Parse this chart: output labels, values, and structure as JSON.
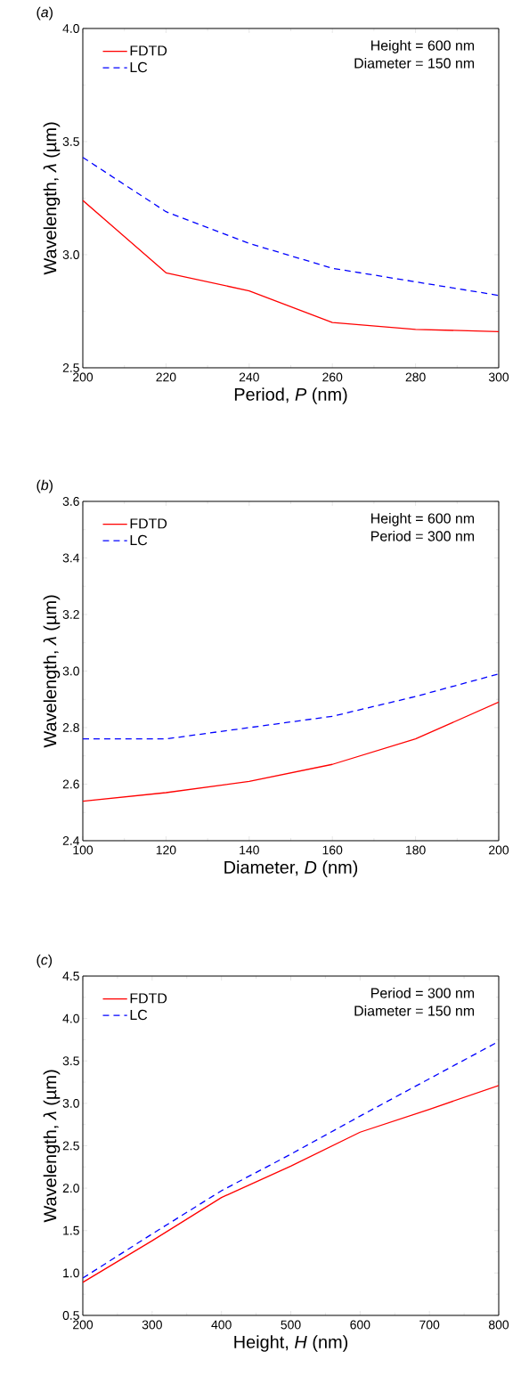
{
  "chart_data": [
    {
      "type": "line",
      "title": "(*a*)",
      "xlabel": "Period, *P* (nm)",
      "ylabel": "Wavelength, *λ* (µm)",
      "annotations": [
        "Height = 600 nm",
        "Diameter = 150 nm"
      ],
      "x": [
        200,
        220,
        240,
        260,
        280,
        300
      ],
      "series": [
        {
          "name": "FDTD",
          "color": "#ff0000",
          "line_style": "solid",
          "values": [
            3.24,
            2.92,
            2.84,
            2.7,
            2.67,
            2.66
          ]
        },
        {
          "name": "LC",
          "color": "#0000ff",
          "line_style": "dashed",
          "values": [
            3.43,
            3.19,
            3.05,
            2.94,
            2.88,
            2.82
          ]
        }
      ],
      "xlim": [
        200,
        300
      ],
      "ylim": [
        2.5,
        4.0
      ],
      "xticks": [
        200,
        220,
        240,
        260,
        280,
        300
      ],
      "yticks": [
        {
          "value": 2.5,
          "label": "2.5"
        },
        {
          "value": 3.0,
          "label": "3.0"
        },
        {
          "value": 3.5,
          "label": "3.5"
        },
        {
          "value": 4.0,
          "label": "4.0"
        }
      ],
      "legend": "top left"
    },
    {
      "type": "line",
      "title": "(*b*)",
      "xlabel": "Diameter, *D* (nm)",
      "ylabel": "Wavelength, *λ* (µm)",
      "annotations": [
        "Height = 600 nm",
        "Period = 300 nm"
      ],
      "x": [
        100,
        120,
        140,
        160,
        180,
        200
      ],
      "series": [
        {
          "name": "FDTD",
          "color": "#ff0000",
          "line_style": "solid",
          "values": [
            2.54,
            2.57,
            2.61,
            2.67,
            2.76,
            2.89
          ]
        },
        {
          "name": "LC",
          "color": "#0000ff",
          "line_style": "dashed",
          "values": [
            2.76,
            2.76,
            2.8,
            2.84,
            2.91,
            2.99
          ]
        }
      ],
      "xlim": [
        100,
        200
      ],
      "ylim": [
        2.4,
        3.6
      ],
      "xticks": [
        100,
        120,
        140,
        160,
        180,
        200
      ],
      "yticks": [
        {
          "value": 2.4,
          "label": "2.4"
        },
        {
          "value": 2.6,
          "label": "2.6"
        },
        {
          "value": 2.8,
          "label": "2.8"
        },
        {
          "value": 3.0,
          "label": "3.0"
        },
        {
          "value": 3.2,
          "label": "3.2"
        },
        {
          "value": 3.4,
          "label": "3.4"
        },
        {
          "value": 3.6,
          "label": "3.6"
        }
      ],
      "legend": "top left"
    },
    {
      "type": "line",
      "title": "(*c*)",
      "xlabel": "Height, *H* (nm)",
      "ylabel": "Wavelength, *λ* (µm)",
      "annotations": [
        "Period = 300 nm",
        "Diameter = 150 nm"
      ],
      "x": [
        200,
        300,
        400,
        500,
        600,
        700,
        800
      ],
      "series": [
        {
          "name": "FDTD",
          "color": "#ff0000",
          "line_style": "solid",
          "values": [
            0.89,
            1.38,
            1.89,
            2.26,
            2.66,
            2.93,
            3.21
          ]
        },
        {
          "name": "LC",
          "color": "#0000ff",
          "line_style": "dashed",
          "values": [
            0.94,
            1.46,
            1.97,
            2.4,
            2.85,
            3.29,
            3.73
          ]
        }
      ],
      "xlim": [
        200,
        800
      ],
      "ylim": [
        0.5,
        4.5
      ],
      "xticks": [
        200,
        300,
        400,
        500,
        600,
        700,
        800
      ],
      "yticks": [
        {
          "value": 0.5,
          "label": "0.5"
        },
        {
          "value": 1.0,
          "label": "1.0"
        },
        {
          "value": 1.5,
          "label": "1.5"
        },
        {
          "value": 2.0,
          "label": "2.0"
        },
        {
          "value": 2.5,
          "label": "2.5"
        },
        {
          "value": 3.0,
          "label": "3.0"
        },
        {
          "value": 3.5,
          "label": "3.5"
        },
        {
          "value": 4.0,
          "label": "4.0"
        },
        {
          "value": 4.5,
          "label": "4.5"
        }
      ],
      "legend": "top left"
    }
  ]
}
